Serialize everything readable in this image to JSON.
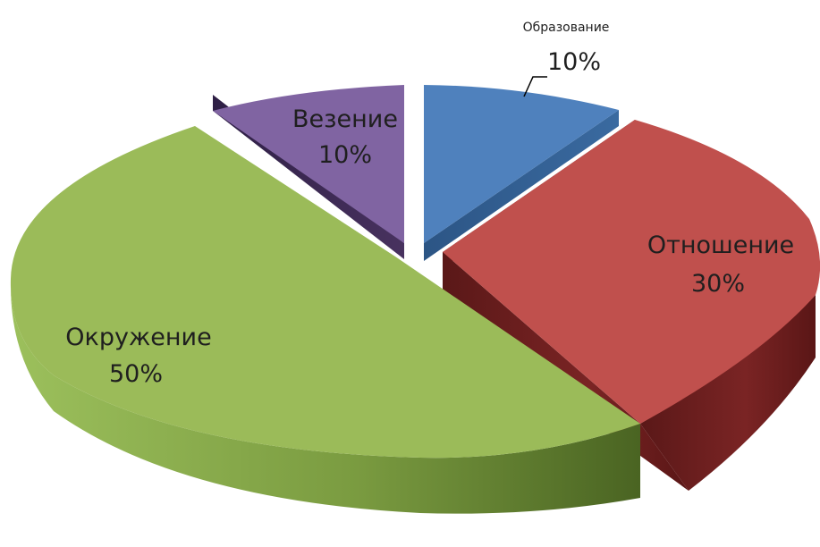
{
  "chart_data": {
    "type": "pie",
    "style": "3d-exploded",
    "categories": [
      "Образование",
      "Отношение",
      "Окружение",
      "Везение"
    ],
    "values": [
      10,
      30,
      50,
      10
    ],
    "value_labels": [
      "10%",
      "30%",
      "50%",
      "10%"
    ],
    "colors": [
      "#4f81bd",
      "#c0504d",
      "#9bbb59",
      "#8064a2"
    ],
    "side_colors": [
      "#2f5a8c",
      "#6e2121",
      "#56752c",
      "#3f2c5a"
    ],
    "title": "",
    "legend": "none"
  }
}
